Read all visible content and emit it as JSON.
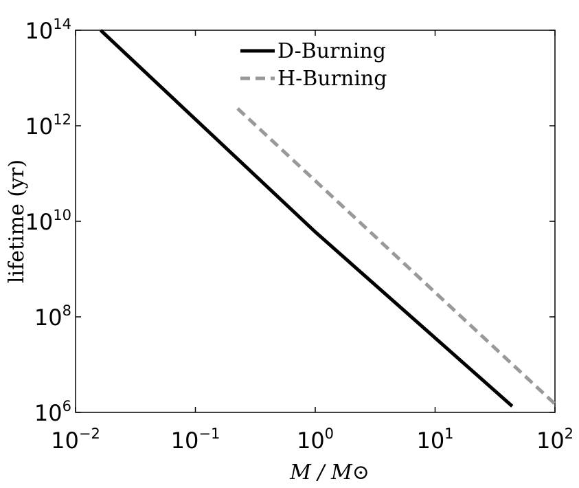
{
  "chart_data": {
    "type": "line",
    "xlabel": "M / M⊙",
    "ylabel": "lifetime (yr)",
    "xscale": "log",
    "yscale": "log",
    "xlim": [
      0.01,
      100
    ],
    "ylim": [
      1000000,
      100000000000000
    ],
    "xticks": [
      {
        "value": 0.01,
        "label": "10",
        "power": "−2"
      },
      {
        "value": 0.1,
        "label": "10",
        "power": "−1"
      },
      {
        "value": 1,
        "label": "10",
        "power": "0"
      },
      {
        "value": 10,
        "label": "10",
        "power": "1"
      },
      {
        "value": 100,
        "label": "10",
        "power": "2"
      }
    ],
    "yticks": [
      {
        "value": 1000000,
        "label": "10",
        "power": "6"
      },
      {
        "value": 100000000,
        "label": "10",
        "power": "8"
      },
      {
        "value": 10000000000,
        "label": "10",
        "power": "10"
      },
      {
        "value": 1000000000000,
        "label": "10",
        "power": "12"
      },
      {
        "value": 100000000000000,
        "label": "10",
        "power": "14"
      }
    ],
    "legend": "upper center",
    "series": [
      {
        "name": "D-Burning",
        "color": "#000000",
        "linestyle": "solid",
        "x": [
          0.0162,
          1,
          44
        ],
        "values": [
          100000000000000,
          6000000000,
          1350000
        ]
      },
      {
        "name": "H-Burning",
        "color": "#999999",
        "linestyle": "dashed",
        "x": [
          0.225,
          100
        ],
        "values": [
          2300000000000,
          1500000
        ]
      }
    ]
  }
}
